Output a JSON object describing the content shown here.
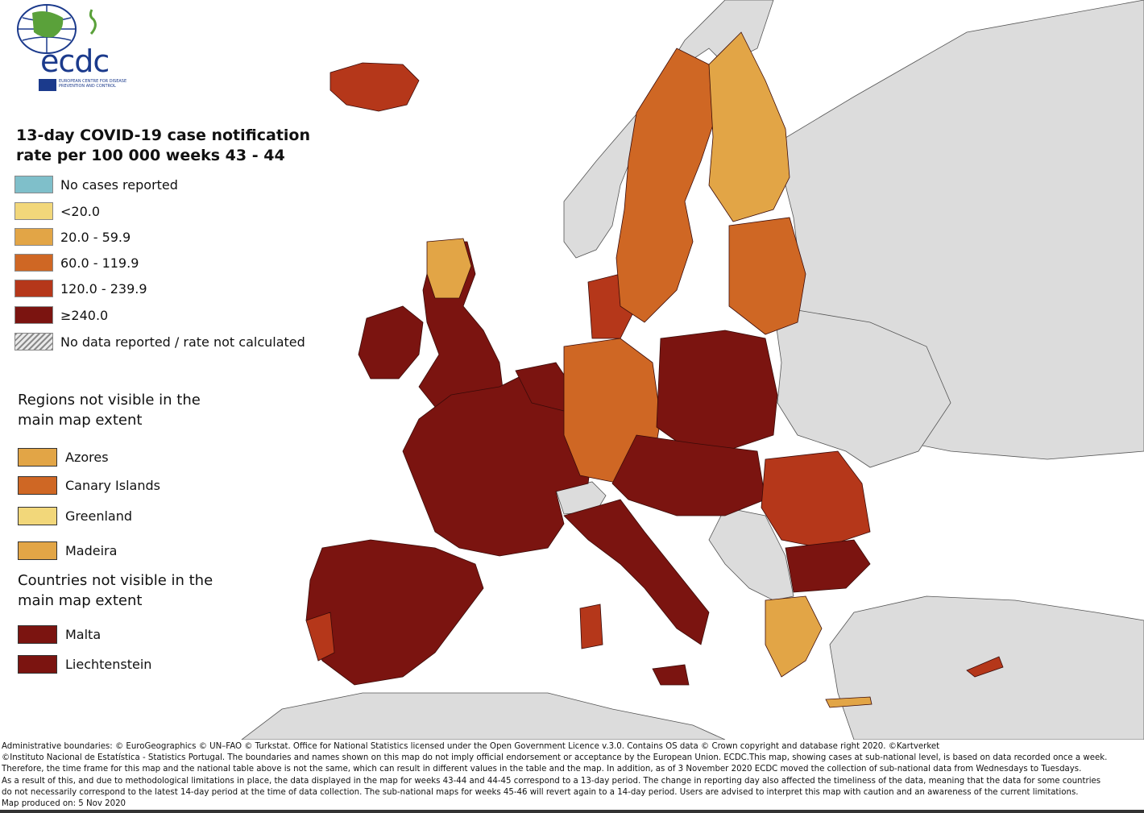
{
  "logo": {
    "text": "ecdc",
    "subtitle": "EUROPEAN CENTRE FOR DISEASE PREVENTION AND CONTROL"
  },
  "title": "13-day COVID-19 case notification rate per 100 000 weeks 43 - 44",
  "legend": [
    {
      "label": "No cases reported",
      "color": "#7fbfca"
    },
    {
      "label": "<20.0",
      "color": "#f2d77a"
    },
    {
      "label": "20.0 - 59.9",
      "color": "#e2a546"
    },
    {
      "label": "60.0 - 119.9",
      "color": "#cf6724"
    },
    {
      "label": "120.0 - 239.9",
      "color": "#b5371a"
    },
    {
      "label": "≥240.0",
      "color": "#7b1410"
    },
    {
      "label": "No data reported / rate not calculated",
      "color": "hatched"
    }
  ],
  "regions_heading": "Regions not visible in the main map extent",
  "regions": [
    {
      "label": "Azores",
      "color": "#e2a546"
    },
    {
      "label": "Canary Islands",
      "color": "#cf6724"
    },
    {
      "label": "Greenland",
      "color": "#f2d77a"
    },
    {
      "label": "Madeira",
      "color": "#e2a546"
    }
  ],
  "countries_heading": "Countries not visible in the main map extent",
  "countries": [
    {
      "label": "Malta",
      "color": "#7b1410"
    },
    {
      "label": "Liechtenstein",
      "color": "#7b1410"
    }
  ],
  "footer": [
    "Administrative boundaries: © EuroGeographics © UN–FAO © Turkstat. Office for National Statistics licensed under the Open Government Licence v.3.0. Contains OS data © Crown copyright and database right 2020. ©Kartverket",
    "©Instituto Nacional de Estatística - Statistics Portugal. The boundaries and names shown on this map do not imply official endorsement or acceptance by the European Union. ECDC.This map, showing cases at sub-national level, is based on data recorded once a week.",
    "Therefore, the time frame for this map and the national table above is not the same, which can result in different values in the table and the map. In addition, as of 3 November 2020 ECDC moved the collection of sub-national data from Wednesdays to Tuesdays.",
    "As a result of this, and due to methodological limitations in place, the data displayed in the map for weeks 43-44 and 44-45 correspond to a 13-day period. The change in reporting day also affected the timeliness of the data, meaning that the data for some countries",
    "do not necessarily correspond to the latest 14-day period at the time of data collection. The sub-national maps for weeks 45-46 will revert again to a 14-day period. Users are advised to interpret this map with caution and an awareness of the current limitations.",
    "Map produced on: 5 Nov 2020"
  ],
  "map_colors": {
    "non_eu": "#dcdcdc",
    "sea": "#ffffff",
    "border": "#444444"
  }
}
